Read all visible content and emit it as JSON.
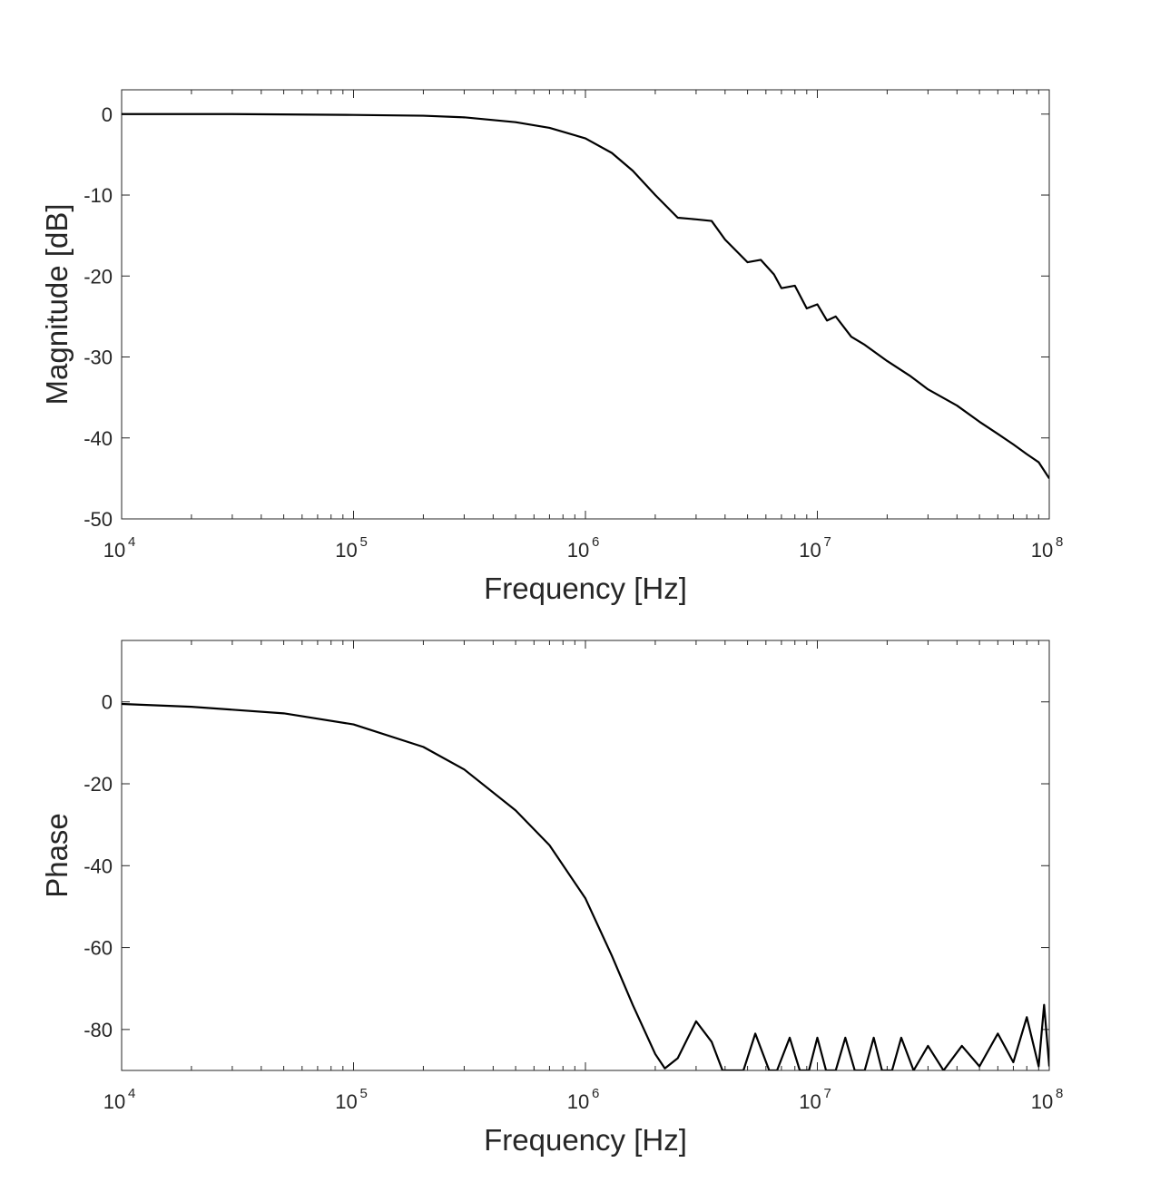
{
  "chart_data": [
    {
      "type": "line",
      "xlabel": "Frequency [Hz]",
      "ylabel": "Magnitude [dB]",
      "xscale": "log",
      "xlim": [
        10000,
        100000000
      ],
      "ylim": [
        -50,
        3
      ],
      "x_ticks": [
        {
          "base": "10",
          "exp": "4"
        },
        {
          "base": "10",
          "exp": "5"
        },
        {
          "base": "10",
          "exp": "6"
        },
        {
          "base": "10",
          "exp": "7"
        },
        {
          "base": "10",
          "exp": "8"
        }
      ],
      "y_ticks": [
        "0",
        "-10",
        "-20",
        "-30",
        "-40",
        "-50"
      ],
      "grid": false,
      "line_color": "#000000",
      "series": [
        {
          "x": [
            10000,
            30000,
            100000,
            200000,
            300000,
            500000,
            700000,
            1000000,
            1300000,
            1600000,
            2000000,
            2500000,
            3000000,
            3500000,
            4000000,
            5000000,
            5700000,
            6500000,
            7000000,
            8000000,
            9000000,
            10000000,
            11000000,
            12000000,
            14000000,
            16000000,
            20000000,
            25000000,
            30000000,
            40000000,
            50000000,
            60000000,
            70000000,
            80000000,
            90000000,
            100000000
          ],
          "y": [
            0,
            0,
            -0.1,
            -0.2,
            -0.4,
            -1.0,
            -1.7,
            -3.0,
            -4.8,
            -7.0,
            -10.0,
            -12.8,
            -13.0,
            -13.2,
            -15.5,
            -18.3,
            -18.0,
            -19.8,
            -21.5,
            -21.2,
            -24.0,
            -23.5,
            -25.5,
            -25.0,
            -27.5,
            -28.5,
            -30.5,
            -32.3,
            -34.0,
            -36.0,
            -38.0,
            -39.5,
            -40.8,
            -42.0,
            -43.0,
            -45.0
          ]
        }
      ]
    },
    {
      "type": "line",
      "xlabel": "Frequency [Hz]",
      "ylabel": "Phase",
      "xscale": "log",
      "xlim": [
        10000,
        100000000
      ],
      "ylim": [
        -90,
        15
      ],
      "x_ticks": [
        {
          "base": "10",
          "exp": "4"
        },
        {
          "base": "10",
          "exp": "5"
        },
        {
          "base": "10",
          "exp": "6"
        },
        {
          "base": "10",
          "exp": "7"
        },
        {
          "base": "10",
          "exp": "8"
        }
      ],
      "y_ticks": [
        "0",
        "-20",
        "-40",
        "-60",
        "-80"
      ],
      "grid": false,
      "line_color": "#000000",
      "series": [
        {
          "x": [
            10000,
            20000,
            50000,
            100000,
            200000,
            300000,
            500000,
            700000,
            1000000,
            1300000,
            1600000,
            2000000,
            2200000,
            2500000,
            3000000,
            3500000,
            3900000,
            4800000,
            5400000,
            6200000,
            6700000,
            7600000,
            8400000,
            9200000,
            10000000,
            10900000,
            12000000,
            13200000,
            14500000,
            16000000,
            17500000,
            19000000,
            21000000,
            23000000,
            26000000,
            30000000,
            35000000,
            42000000,
            50000000,
            60000000,
            70000000,
            80000000,
            90000000,
            95000000,
            100000000
          ],
          "y": [
            -0.5,
            -1.2,
            -2.8,
            -5.5,
            -11.0,
            -16.5,
            -26.5,
            -35.0,
            -48.0,
            -62.0,
            -74.0,
            -86.0,
            -89.5,
            -87.0,
            -78.0,
            -83.0,
            -90.0,
            -90.0,
            -81.0,
            -90.0,
            -90.0,
            -82.0,
            -90.0,
            -90.0,
            -82.0,
            -90.0,
            -90.0,
            -82.0,
            -90.0,
            -90.0,
            -82.0,
            -90.0,
            -90.0,
            -82.0,
            -90.0,
            -84.0,
            -90.0,
            -84.0,
            -89.0,
            -81.0,
            -88.0,
            -77.0,
            -89.0,
            -74.0,
            -89.0
          ]
        }
      ]
    }
  ]
}
